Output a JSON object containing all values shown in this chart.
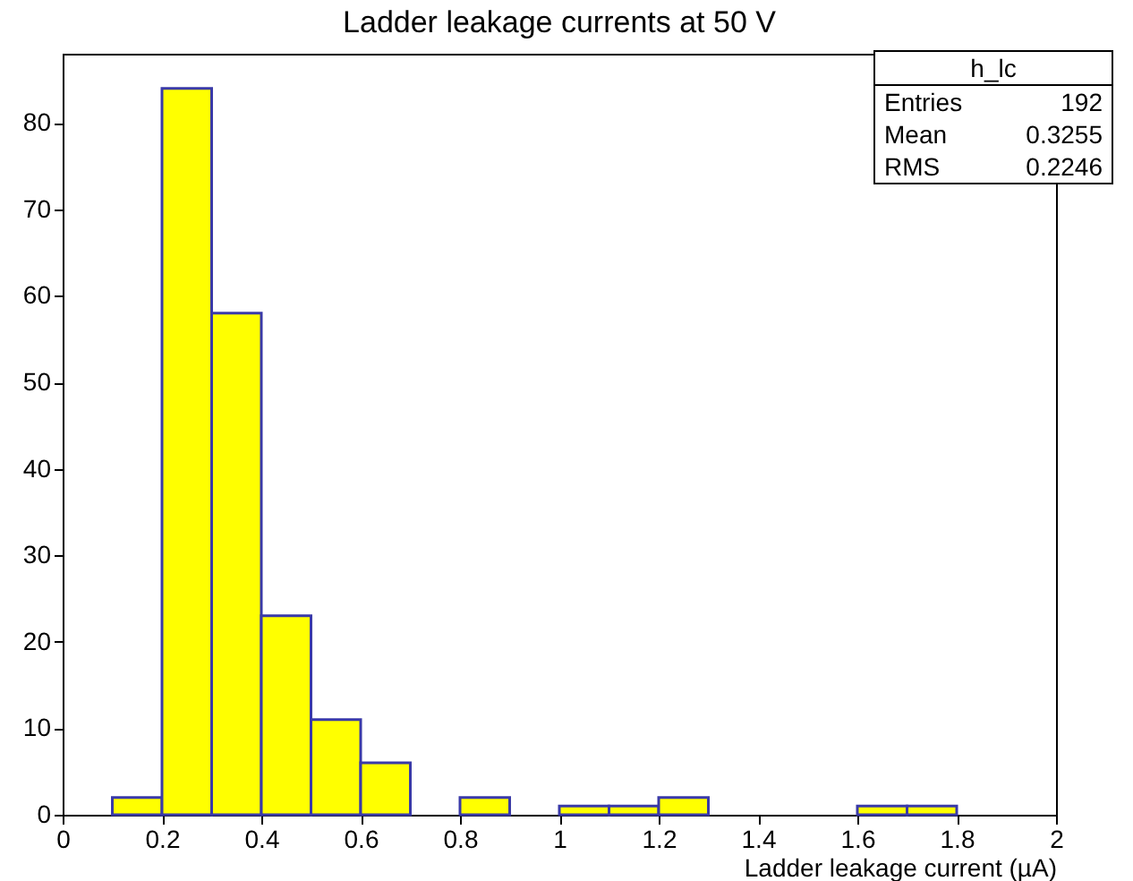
{
  "chart_data": {
    "type": "histogram",
    "title": "Ladder leakage currents at 50 V",
    "xlabel": "Ladder leakage current (µA)",
    "bins": [
      0,
      0.1,
      0.2,
      0.3,
      0.4,
      0.5,
      0.6,
      0.7,
      0.8,
      0.9,
      1,
      1.1,
      1.2,
      1.3,
      1.4,
      1.5,
      1.6,
      1.7,
      1.8,
      1.9,
      2
    ],
    "values": [
      0,
      2,
      84,
      58,
      23,
      11,
      6,
      0,
      2,
      0,
      1,
      1,
      2,
      0,
      0,
      0,
      1,
      1,
      0,
      0
    ],
    "color": "#ffff00",
    "xlim": [
      0,
      2
    ],
    "xticks": [
      0,
      0.2,
      0.4,
      0.6,
      0.8,
      1,
      1.2,
      1.4,
      1.6,
      1.8,
      2
    ],
    "ylim": [
      0,
      88
    ],
    "yticks": [
      0,
      10,
      20,
      30,
      40,
      50,
      60,
      70,
      80
    ],
    "annotations": [
      "h_lc",
      "Entries 192",
      "Mean 0.3255",
      "RMS 0.2246"
    ],
    "grid": false
  }
}
